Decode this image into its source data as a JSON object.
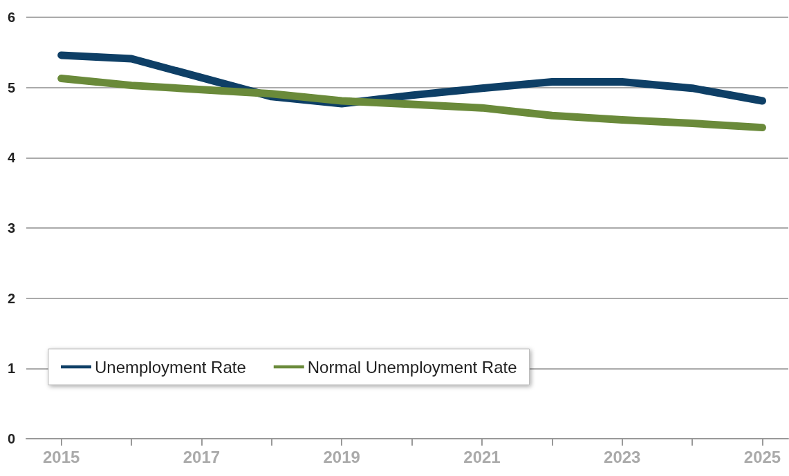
{
  "chart_data": {
    "type": "line",
    "x": [
      2015,
      2016,
      2017,
      2018,
      2019,
      2020,
      2021,
      2022,
      2023,
      2024,
      2025
    ],
    "series": [
      {
        "name": "Unemployment Rate",
        "color": "#0e3f66",
        "values": [
          5.46,
          5.41,
          5.14,
          4.87,
          4.77,
          4.89,
          4.99,
          5.08,
          5.08,
          4.99,
          4.81
        ]
      },
      {
        "name": "Normal Unemployment Rate",
        "color": "#6a8a3a",
        "values": [
          5.13,
          5.03,
          4.97,
          4.91,
          4.81,
          4.76,
          4.71,
          4.6,
          4.54,
          4.49,
          4.43
        ]
      }
    ],
    "xlim": [
      2014.5,
      2025.37
    ],
    "xticks": [
      2015,
      {
        "value": 2016,
        "label": null
      },
      2017,
      {
        "value": 2018,
        "label": null
      },
      2019,
      {
        "value": 2020,
        "label": null
      },
      2021,
      {
        "value": 2022,
        "label": null
      },
      2023,
      {
        "value": 2024,
        "label": null
      },
      2025
    ],
    "ylim": [
      0,
      6
    ],
    "yticks": [
      0,
      1,
      2,
      3,
      4,
      5,
      6
    ],
    "grid": "y",
    "legend": "bottom left",
    "marker": "none",
    "line_style": "solid"
  }
}
